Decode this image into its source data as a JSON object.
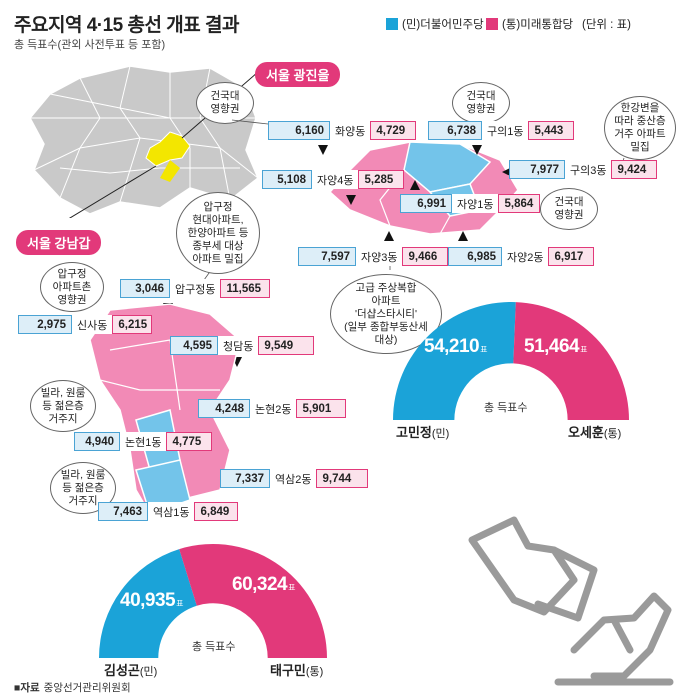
{
  "title": "주요지역 4·15 총선 개표 결과",
  "subtitle": "총 득표수(관외 사전투표 등 포함)",
  "legend": {
    "dem_label": "(민)더불어민주당",
    "utd_label": "(통)미래통합당",
    "unit": "(단위 : 표)",
    "dem_color": "#1ba3d8",
    "utd_color": "#e2397a"
  },
  "colors": {
    "map_pink": "#f28ab6",
    "map_blue": "#73c4ea",
    "map_yellow": "#f3e600",
    "map_gray": "#c9c9c9"
  },
  "gwangjin": {
    "region_label": "서울 광진을",
    "notes": {
      "konkuk1": "건국대\n영향권",
      "konkuk2": "건국대\n영향권",
      "konkuk3": "건국대\n영향권",
      "hangang": "한강변을\n따라 중산층\n거주 아파트\n밀집",
      "complex": "고급 주상복합\n아파트\n'더샵스타시티'\n(일부 종합부동산세\n대상)"
    },
    "rows": {
      "hwayang": {
        "dem": "6,160",
        "name": "화양동",
        "utd": "4,729"
      },
      "guui1": {
        "dem": "6,738",
        "name": "구의1동",
        "utd": "5,443"
      },
      "guui3": {
        "dem": "7,977",
        "name": "구의3동",
        "utd": "9,424"
      },
      "jayang4": {
        "dem": "5,108",
        "name": "자양4동",
        "utd": "5,285"
      },
      "jayang1": {
        "dem": "6,991",
        "name": "자양1동",
        "utd": "5,864"
      },
      "jayang3": {
        "dem": "7,597",
        "name": "자양3동",
        "utd": "9,466"
      },
      "jayang2": {
        "dem": "6,985",
        "name": "자양2동",
        "utd": "6,917"
      }
    },
    "total_label": "총 득표수",
    "dem_total": "54,210",
    "utd_total": "51,464",
    "unit_suffix": "표",
    "dem_candidate": "고민정",
    "utd_candidate": "오세훈",
    "dem_party": "(민)",
    "utd_party": "(통)",
    "dem_votes": 54210,
    "utd_votes": 51464
  },
  "gangnam": {
    "region_label": "서울 강남갑",
    "notes": {
      "apgujeong_apt": "압구정\n현대아파트,\n한양아파트 등\n종부세 대상\n아파트 밀집",
      "apgujeong_rodeo": "압구정\n아파트촌\n영향권",
      "villa1": "빌라, 원룸\n등 젊은층\n거주지",
      "villa2": "빌라, 원룸\n등 젊은층\n거주지"
    },
    "rows": {
      "apgujeong": {
        "dem": "3,046",
        "name": "압구정동",
        "utd": "11,565"
      },
      "sinsa": {
        "dem": "2,975",
        "name": "신사동",
        "utd": "6,215"
      },
      "cheongdam": {
        "dem": "4,595",
        "name": "청담동",
        "utd": "9,549"
      },
      "nonhyeon2": {
        "dem": "4,248",
        "name": "논현2동",
        "utd": "5,901"
      },
      "nonhyeon1": {
        "dem": "4,940",
        "name": "논현1동",
        "utd": "4,775"
      },
      "yeoksam2": {
        "dem": "7,337",
        "name": "역삼2동",
        "utd": "9,744"
      },
      "yeoksam1": {
        "dem": "7,463",
        "name": "역삼1동",
        "utd": "6,849"
      }
    },
    "total_label": "총 득표수",
    "dem_total": "40,935",
    "utd_total": "60,324",
    "unit_suffix": "표",
    "dem_candidate": "김성곤",
    "utd_candidate": "태구민",
    "dem_party": "(민)",
    "utd_party": "(통)",
    "dem_votes": 40935,
    "utd_votes": 60324
  },
  "source": {
    "label": "자료",
    "text": "중앙선거관리위원회"
  }
}
